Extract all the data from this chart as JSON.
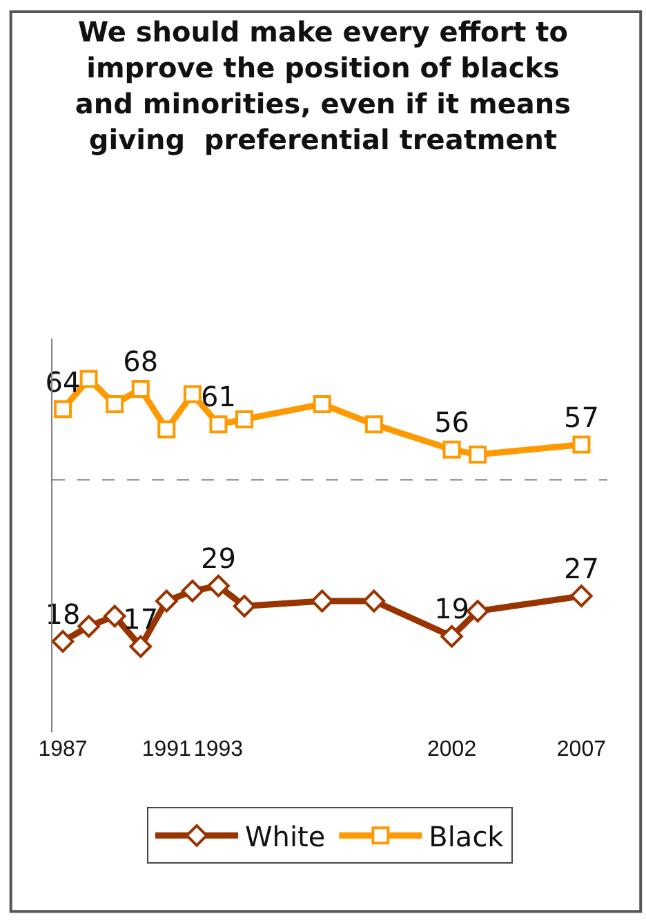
{
  "chart_data": {
    "type": "line",
    "title": "We should make every effort to\nimprove the position of blacks\nand minorities, even if it means\ngiving  preferential treatment",
    "x": [
      1987,
      1988,
      1989,
      1990,
      1991,
      1992,
      1993,
      1994,
      1997,
      1999,
      2002,
      2003,
      2007
    ],
    "xlim": [
      1986.6,
      2008
    ],
    "xticks": [
      1987,
      1991,
      1993,
      2002,
      2007
    ],
    "ylim": [
      0,
      78
    ],
    "tick_labels": "x",
    "series": [
      {
        "name": "White",
        "color": "#993300",
        "marker": "diamond",
        "values": [
          18,
          21,
          23,
          17,
          26,
          28,
          29,
          25,
          26,
          26,
          19,
          24,
          27
        ],
        "value_labels": [
          "18",
          null,
          null,
          "17",
          null,
          null,
          "29",
          null,
          null,
          null,
          "19",
          null,
          "27"
        ]
      },
      {
        "name": "Black",
        "color": "#ff9900",
        "marker": "square",
        "values": [
          64,
          70,
          65,
          68,
          60,
          67,
          61,
          62,
          65,
          61,
          56,
          55,
          57
        ],
        "value_labels": [
          "64",
          null,
          null,
          "68",
          null,
          null,
          "61",
          null,
          null,
          null,
          "56",
          null,
          "57"
        ]
      }
    ],
    "ref_lines": [
      {
        "axis": "y",
        "value": 50,
        "color": "#808080",
        "line_style": "dashed"
      }
    ],
    "legend": "bottom",
    "line_style": "solid"
  }
}
